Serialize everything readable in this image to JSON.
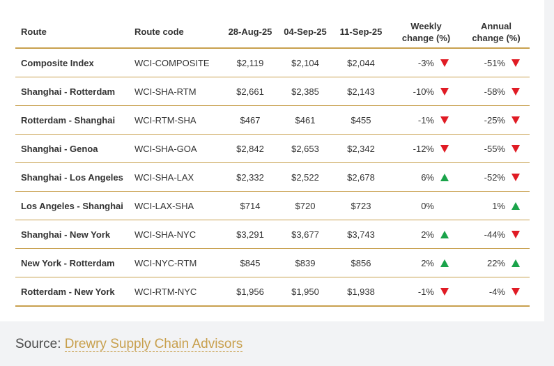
{
  "table": {
    "headers": {
      "route": "Route",
      "code": "Route code",
      "d1": "28-Aug-25",
      "d2": "04-Sep-25",
      "d3": "11-Sep-25",
      "weekly_line1": "Weekly",
      "weekly_line2": "change (%)",
      "annual_line1": "Annual",
      "annual_line2": "change (%)"
    },
    "rows": [
      {
        "route": "Composite Index",
        "code": "WCI-COMPOSITE",
        "d1": "$2,119",
        "d2": "$2,104",
        "d3": "$2,044",
        "weekly": "-3%",
        "weekly_dir": "down",
        "annual": "-51%",
        "annual_dir": "down"
      },
      {
        "route": "Shanghai - Rotterdam",
        "code": "WCI-SHA-RTM",
        "d1": "$2,661",
        "d2": "$2,385",
        "d3": "$2,143",
        "weekly": "-10%",
        "weekly_dir": "down",
        "annual": "-58%",
        "annual_dir": "down"
      },
      {
        "route": "Rotterdam - Shanghai",
        "code": "WCI-RTM-SHA",
        "d1": "$467",
        "d2": "$461",
        "d3": "$455",
        "weekly": "-1%",
        "weekly_dir": "down",
        "annual": "-25%",
        "annual_dir": "down"
      },
      {
        "route": "Shanghai - Genoa",
        "code": "WCI-SHA-GOA",
        "d1": "$2,842",
        "d2": "$2,653",
        "d3": "$2,342",
        "weekly": "-12%",
        "weekly_dir": "down",
        "annual": "-55%",
        "annual_dir": "down"
      },
      {
        "route": "Shanghai - Los Angeles",
        "code": "WCI-SHA-LAX",
        "d1": "$2,332",
        "d2": "$2,522",
        "d3": "$2,678",
        "weekly": "6%",
        "weekly_dir": "up",
        "annual": "-52%",
        "annual_dir": "down"
      },
      {
        "route": "Los Angeles - Shanghai",
        "code": "WCI-LAX-SHA",
        "d1": "$714",
        "d2": "$720",
        "d3": "$723",
        "weekly": "0%",
        "weekly_dir": "none",
        "annual": "1%",
        "annual_dir": "up"
      },
      {
        "route": "Shanghai - New York",
        "code": "WCI-SHA-NYC",
        "d1": "$3,291",
        "d2": "$3,677",
        "d3": "$3,743",
        "weekly": "2%",
        "weekly_dir": "up",
        "annual": "-44%",
        "annual_dir": "down"
      },
      {
        "route": "New York - Rotterdam",
        "code": "WCI-NYC-RTM",
        "d1": "$845",
        "d2": "$839",
        "d3": "$856",
        "weekly": "2%",
        "weekly_dir": "up",
        "annual": "22%",
        "annual_dir": "up"
      },
      {
        "route": "Rotterdam - New York",
        "code": "WCI-RTM-NYC",
        "d1": "$1,956",
        "d2": "$1,950",
        "d3": "$1,938",
        "weekly": "-1%",
        "weekly_dir": "down",
        "annual": "-4%",
        "annual_dir": "down"
      }
    ]
  },
  "colors": {
    "accent_gold": "#c8a04e",
    "down_red": "#e01b24",
    "up_green": "#1aa34a"
  },
  "source": {
    "prefix": "Source: ",
    "link_text": "Drewry Supply Chain Advisors"
  }
}
